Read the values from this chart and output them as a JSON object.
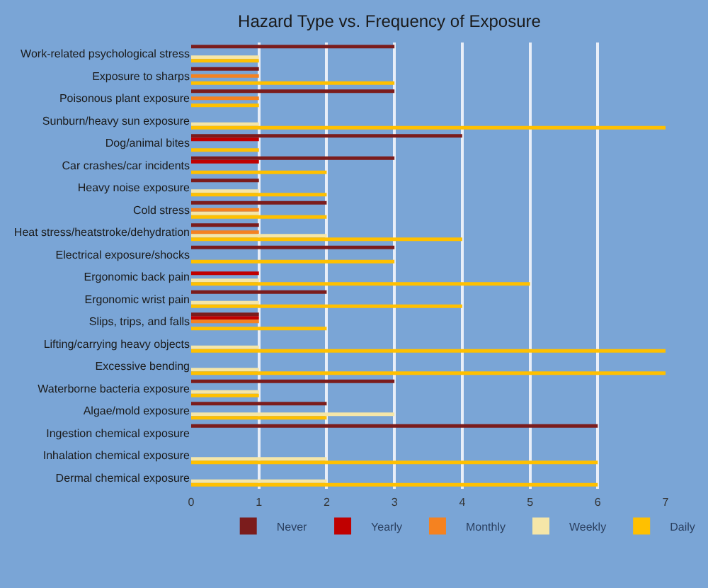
{
  "chart_data": {
    "type": "bar",
    "orientation": "horizontal",
    "title": "Hazard Type vs. Frequency of Exposure",
    "categories": [
      "Work-related psychological stress",
      "Exposure to sharps",
      "Poisonous plant exposure",
      "Sunburn/heavy sun exposure",
      "Dog/animal bites",
      "Car crashes/car incidents",
      "Heavy noise exposure",
      "Cold stress",
      "Heat stress/heatstroke/dehydration",
      "Electrical exposure/shocks",
      "Ergonomic back pain",
      "Ergonomic wrist pain",
      "Slips, trips, and falls",
      "Lifting/carrying heavy objects",
      "Excessive bending",
      "Waterborne bacteria exposure",
      "Algae/mold exposure",
      "Ingestion chemical exposure",
      "Inhalation chemical exposure",
      "Dermal chemical exposure"
    ],
    "series": [
      {
        "name": "Never",
        "color": "#7b1c1c",
        "values": [
          3,
          1,
          3,
          null,
          4,
          3,
          1,
          2,
          1,
          3,
          null,
          2,
          1,
          null,
          null,
          3,
          2,
          6,
          null,
          null
        ]
      },
      {
        "name": "Yearly",
        "color": "#c00000",
        "values": [
          null,
          null,
          null,
          null,
          1,
          1,
          null,
          null,
          null,
          null,
          1,
          null,
          1,
          null,
          null,
          null,
          null,
          null,
          null,
          null
        ]
      },
      {
        "name": "Monthly",
        "color": "#f58220",
        "values": [
          null,
          1,
          1,
          null,
          null,
          null,
          null,
          1,
          1,
          null,
          null,
          null,
          1,
          null,
          null,
          null,
          null,
          null,
          null,
          null
        ]
      },
      {
        "name": "Weekly",
        "color": "#f5e6a8",
        "values": [
          1,
          null,
          null,
          1,
          null,
          null,
          1,
          1,
          2,
          null,
          1,
          1,
          null,
          1,
          1,
          1,
          3,
          null,
          2,
          2
        ]
      },
      {
        "name": "Daily",
        "color": "#ffc000",
        "values": [
          1,
          3,
          1,
          7,
          1,
          2,
          2,
          2,
          4,
          3,
          5,
          4,
          2,
          7,
          7,
          1,
          2,
          null,
          6,
          6
        ]
      }
    ],
    "xlim": [
      0,
      7
    ],
    "xticks": [
      0,
      1,
      2,
      3,
      4,
      5,
      6,
      7
    ],
    "grid": "x",
    "legend": "bottom"
  }
}
